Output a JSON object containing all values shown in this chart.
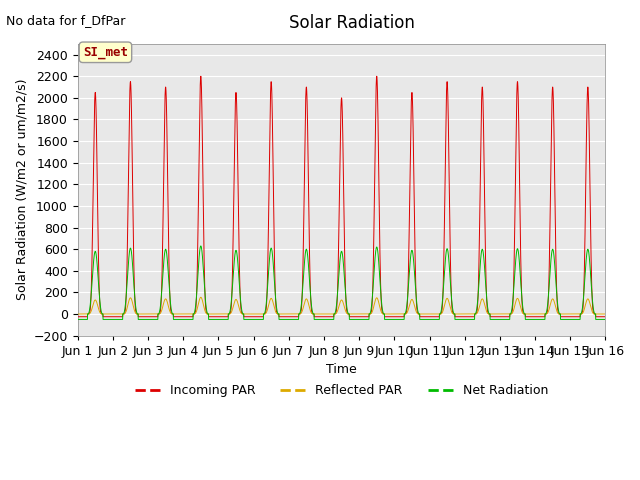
{
  "title": "Solar Radiation",
  "subtitle": "No data for f_DfPar",
  "xlabel": "Time",
  "ylabel": "Solar Radiation (W/m2 or um/m2/s)",
  "xlim": [
    0,
    15
  ],
  "ylim": [
    -200,
    2500
  ],
  "yticks": [
    -200,
    0,
    200,
    400,
    600,
    800,
    1000,
    1200,
    1400,
    1600,
    1800,
    2000,
    2200,
    2400
  ],
  "xtick_labels": [
    "Jun 1",
    "Jun 2",
    "Jun 3",
    "Jun 4",
    "Jun 5",
    "Jun 6",
    "Jun 7",
    "Jun 8",
    "Jun 9",
    "Jun 10",
    "Jun 11",
    "Jun 12",
    "Jun 13",
    "Jun 14",
    "Jun 15",
    "Jun 16"
  ],
  "legend_label": "SI_met",
  "series": {
    "incoming_par": {
      "label": "Incoming PAR",
      "color": "#dd0000"
    },
    "reflected_par": {
      "label": "Reflected PAR",
      "color": "#ddaa00"
    },
    "net_radiation": {
      "label": "Net Radiation",
      "color": "#00bb00"
    }
  },
  "num_days": 15,
  "incoming_peaks": [
    2050,
    2150,
    2100,
    2200,
    2050,
    2150,
    2100,
    2000,
    2200,
    2050,
    2150,
    2100,
    2150,
    2100,
    2100
  ],
  "reflected_peaks": [
    130,
    150,
    140,
    155,
    135,
    145,
    140,
    130,
    150,
    135,
    145,
    140,
    145,
    140,
    140
  ],
  "net_peaks": [
    580,
    610,
    600,
    630,
    590,
    610,
    600,
    580,
    620,
    590,
    605,
    600,
    605,
    600,
    600
  ],
  "night_base": -50,
  "plot_bg": "#e8e8e8",
  "background_color": "#ffffff",
  "grid_color": "#ffffff",
  "title_fontsize": 12,
  "label_fontsize": 9,
  "tick_fontsize": 9,
  "subtitle_fontsize": 9
}
